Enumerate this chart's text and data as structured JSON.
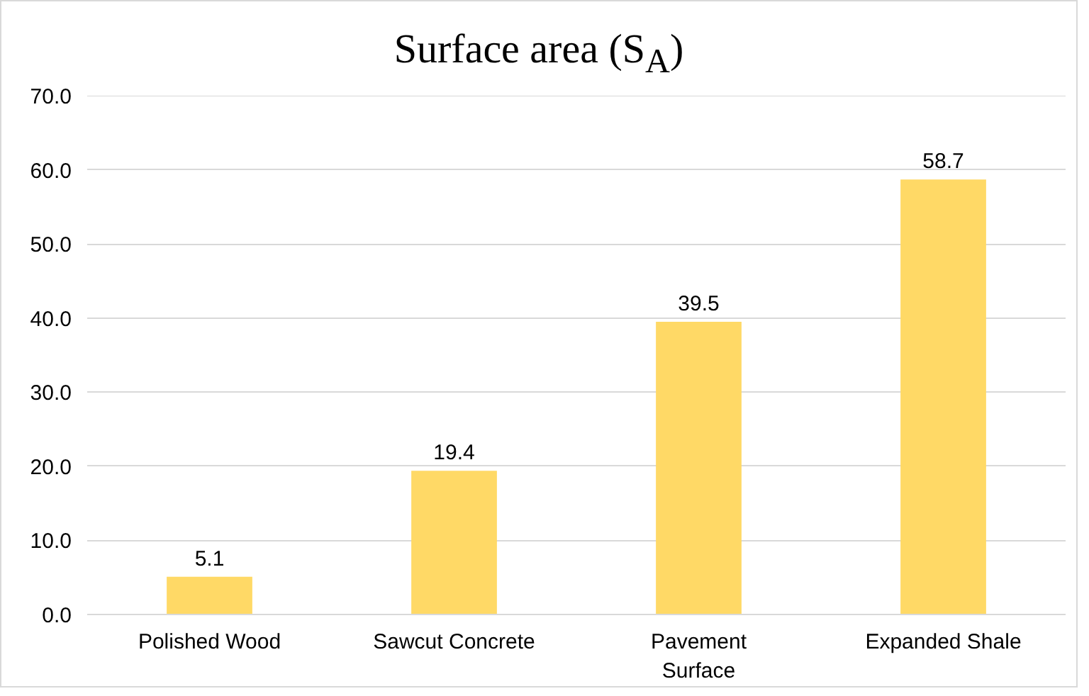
{
  "chart_data": {
    "type": "bar",
    "title": "Surface area (S$_{A}$)",
    "categories": [
      "Polished Wood",
      "Sawcut Concrete",
      "Pavement Surface",
      "Expanded Shale"
    ],
    "values": [
      5.1,
      19.4,
      39.5,
      58.7
    ],
    "color": "#ffd966",
    "ylim": [
      0,
      70
    ],
    "yticks": [
      {
        "value": 0,
        "label": "0.0"
      },
      {
        "value": 10,
        "label": "10.0"
      },
      {
        "value": 20,
        "label": "20.0"
      },
      {
        "value": 30,
        "label": "30.0"
      },
      {
        "value": 40,
        "label": "40.0"
      },
      {
        "value": 50,
        "label": "50.0"
      },
      {
        "value": 60,
        "label": "60.0"
      },
      {
        "value": 70,
        "label": "70.0"
      }
    ],
    "grid": "y",
    "data_labels": true
  }
}
